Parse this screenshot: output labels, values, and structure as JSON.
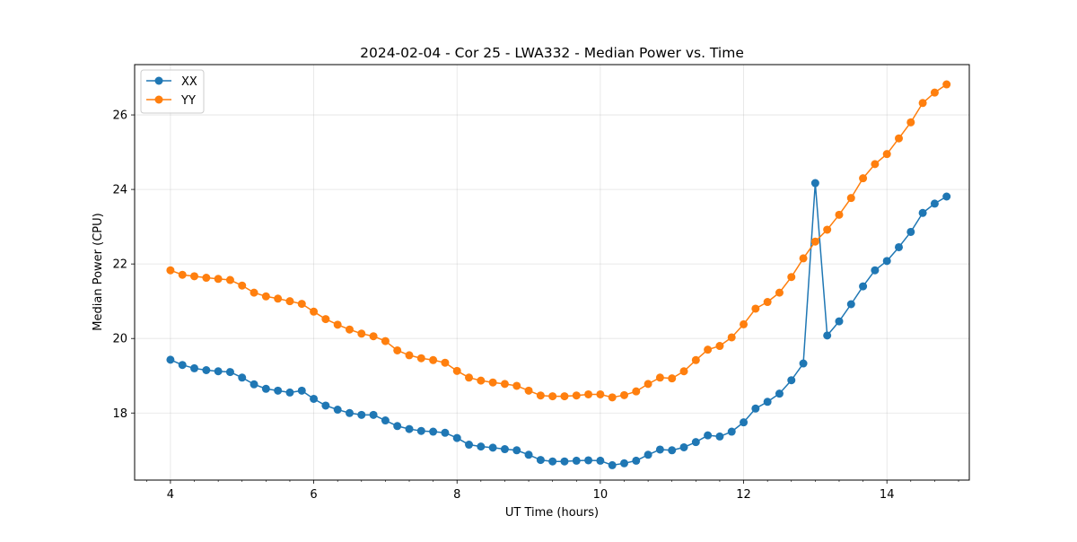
{
  "chart_data": {
    "type": "line",
    "title": "2024-02-04 - Cor 25 - LWA332 - Median Power vs. Time",
    "xlabel": "UT Time (hours)",
    "ylabel": "Median Power (CPU)",
    "xlim": [
      3.5,
      15.15
    ],
    "ylim": [
      16.2,
      27.35
    ],
    "x_ticks": [
      4,
      6,
      8,
      10,
      12,
      14
    ],
    "y_ticks": [
      18,
      20,
      22,
      24,
      26
    ],
    "x_minor_ticks": [
      3.6667,
      4.3333,
      4.6667,
      5.0,
      5.3333,
      5.6667,
      6.3333,
      6.6667,
      7.0,
      7.3333,
      7.6667,
      8.3333,
      8.6667,
      9.0,
      9.3333,
      9.6667,
      10.3333,
      10.6667,
      11.0,
      11.3333,
      11.6667,
      12.3333,
      12.6667,
      13.0,
      13.3333,
      13.6667,
      14.3333,
      14.6667,
      15.0
    ],
    "grid": true,
    "legend": "top-left",
    "x": [
      4.0,
      4.1667,
      4.3333,
      4.5,
      4.6667,
      4.8333,
      5.0,
      5.1667,
      5.3333,
      5.5,
      5.6667,
      5.8333,
      6.0,
      6.1667,
      6.3333,
      6.5,
      6.6667,
      6.8333,
      7.0,
      7.1667,
      7.3333,
      7.5,
      7.6667,
      7.8333,
      8.0,
      8.1667,
      8.3333,
      8.5,
      8.6667,
      8.8333,
      9.0,
      9.1667,
      9.3333,
      9.5,
      9.6667,
      9.8333,
      10.0,
      10.1667,
      10.3333,
      10.5,
      10.6667,
      10.8333,
      11.0,
      11.1667,
      11.3333,
      11.5,
      11.6667,
      11.8333,
      12.0,
      12.1667,
      12.3333,
      12.5,
      12.6667,
      12.8333,
      13.0,
      13.1667,
      13.3333,
      13.5,
      13.6667,
      13.8333,
      14.0,
      14.1667,
      14.3333,
      14.5,
      14.6667,
      14.8333
    ],
    "series": [
      {
        "name": "XX",
        "color": "#1f77b4",
        "values": [
          19.43,
          19.29,
          19.2,
          19.15,
          19.12,
          19.1,
          18.95,
          18.77,
          18.65,
          18.6,
          18.55,
          18.6,
          18.38,
          18.2,
          18.09,
          18.0,
          17.95,
          17.95,
          17.8,
          17.65,
          17.57,
          17.52,
          17.5,
          17.47,
          17.33,
          17.15,
          17.1,
          17.07,
          17.03,
          17.0,
          16.88,
          16.74,
          16.7,
          16.7,
          16.72,
          16.73,
          16.72,
          16.6,
          16.65,
          16.72,
          16.88,
          17.02,
          17.0,
          17.08,
          17.22,
          17.4,
          17.37,
          17.5,
          17.75,
          18.12,
          18.3,
          18.52,
          18.88,
          19.33,
          24.17,
          20.08,
          20.46,
          20.92,
          21.4,
          21.83,
          22.08,
          22.45,
          22.86,
          23.37,
          23.62,
          23.81
        ]
      },
      {
        "name": "YY",
        "color": "#ff7f0e",
        "values": [
          21.83,
          21.71,
          21.67,
          21.63,
          21.6,
          21.57,
          21.42,
          21.23,
          21.13,
          21.07,
          21.0,
          20.93,
          20.72,
          20.52,
          20.37,
          20.24,
          20.13,
          20.06,
          19.93,
          19.68,
          19.55,
          19.47,
          19.42,
          19.35,
          19.13,
          18.95,
          18.87,
          18.82,
          18.78,
          18.73,
          18.6,
          18.47,
          18.45,
          18.45,
          18.47,
          18.5,
          18.5,
          18.42,
          18.48,
          18.58,
          18.78,
          18.95,
          18.93,
          19.12,
          19.42,
          19.7,
          19.8,
          20.03,
          20.38,
          20.8,
          20.98,
          21.23,
          21.65,
          22.15,
          22.6,
          22.92,
          23.32,
          23.77,
          24.3,
          24.68,
          24.95,
          25.37,
          25.8,
          26.32,
          26.6,
          26.82
        ]
      }
    ]
  }
}
